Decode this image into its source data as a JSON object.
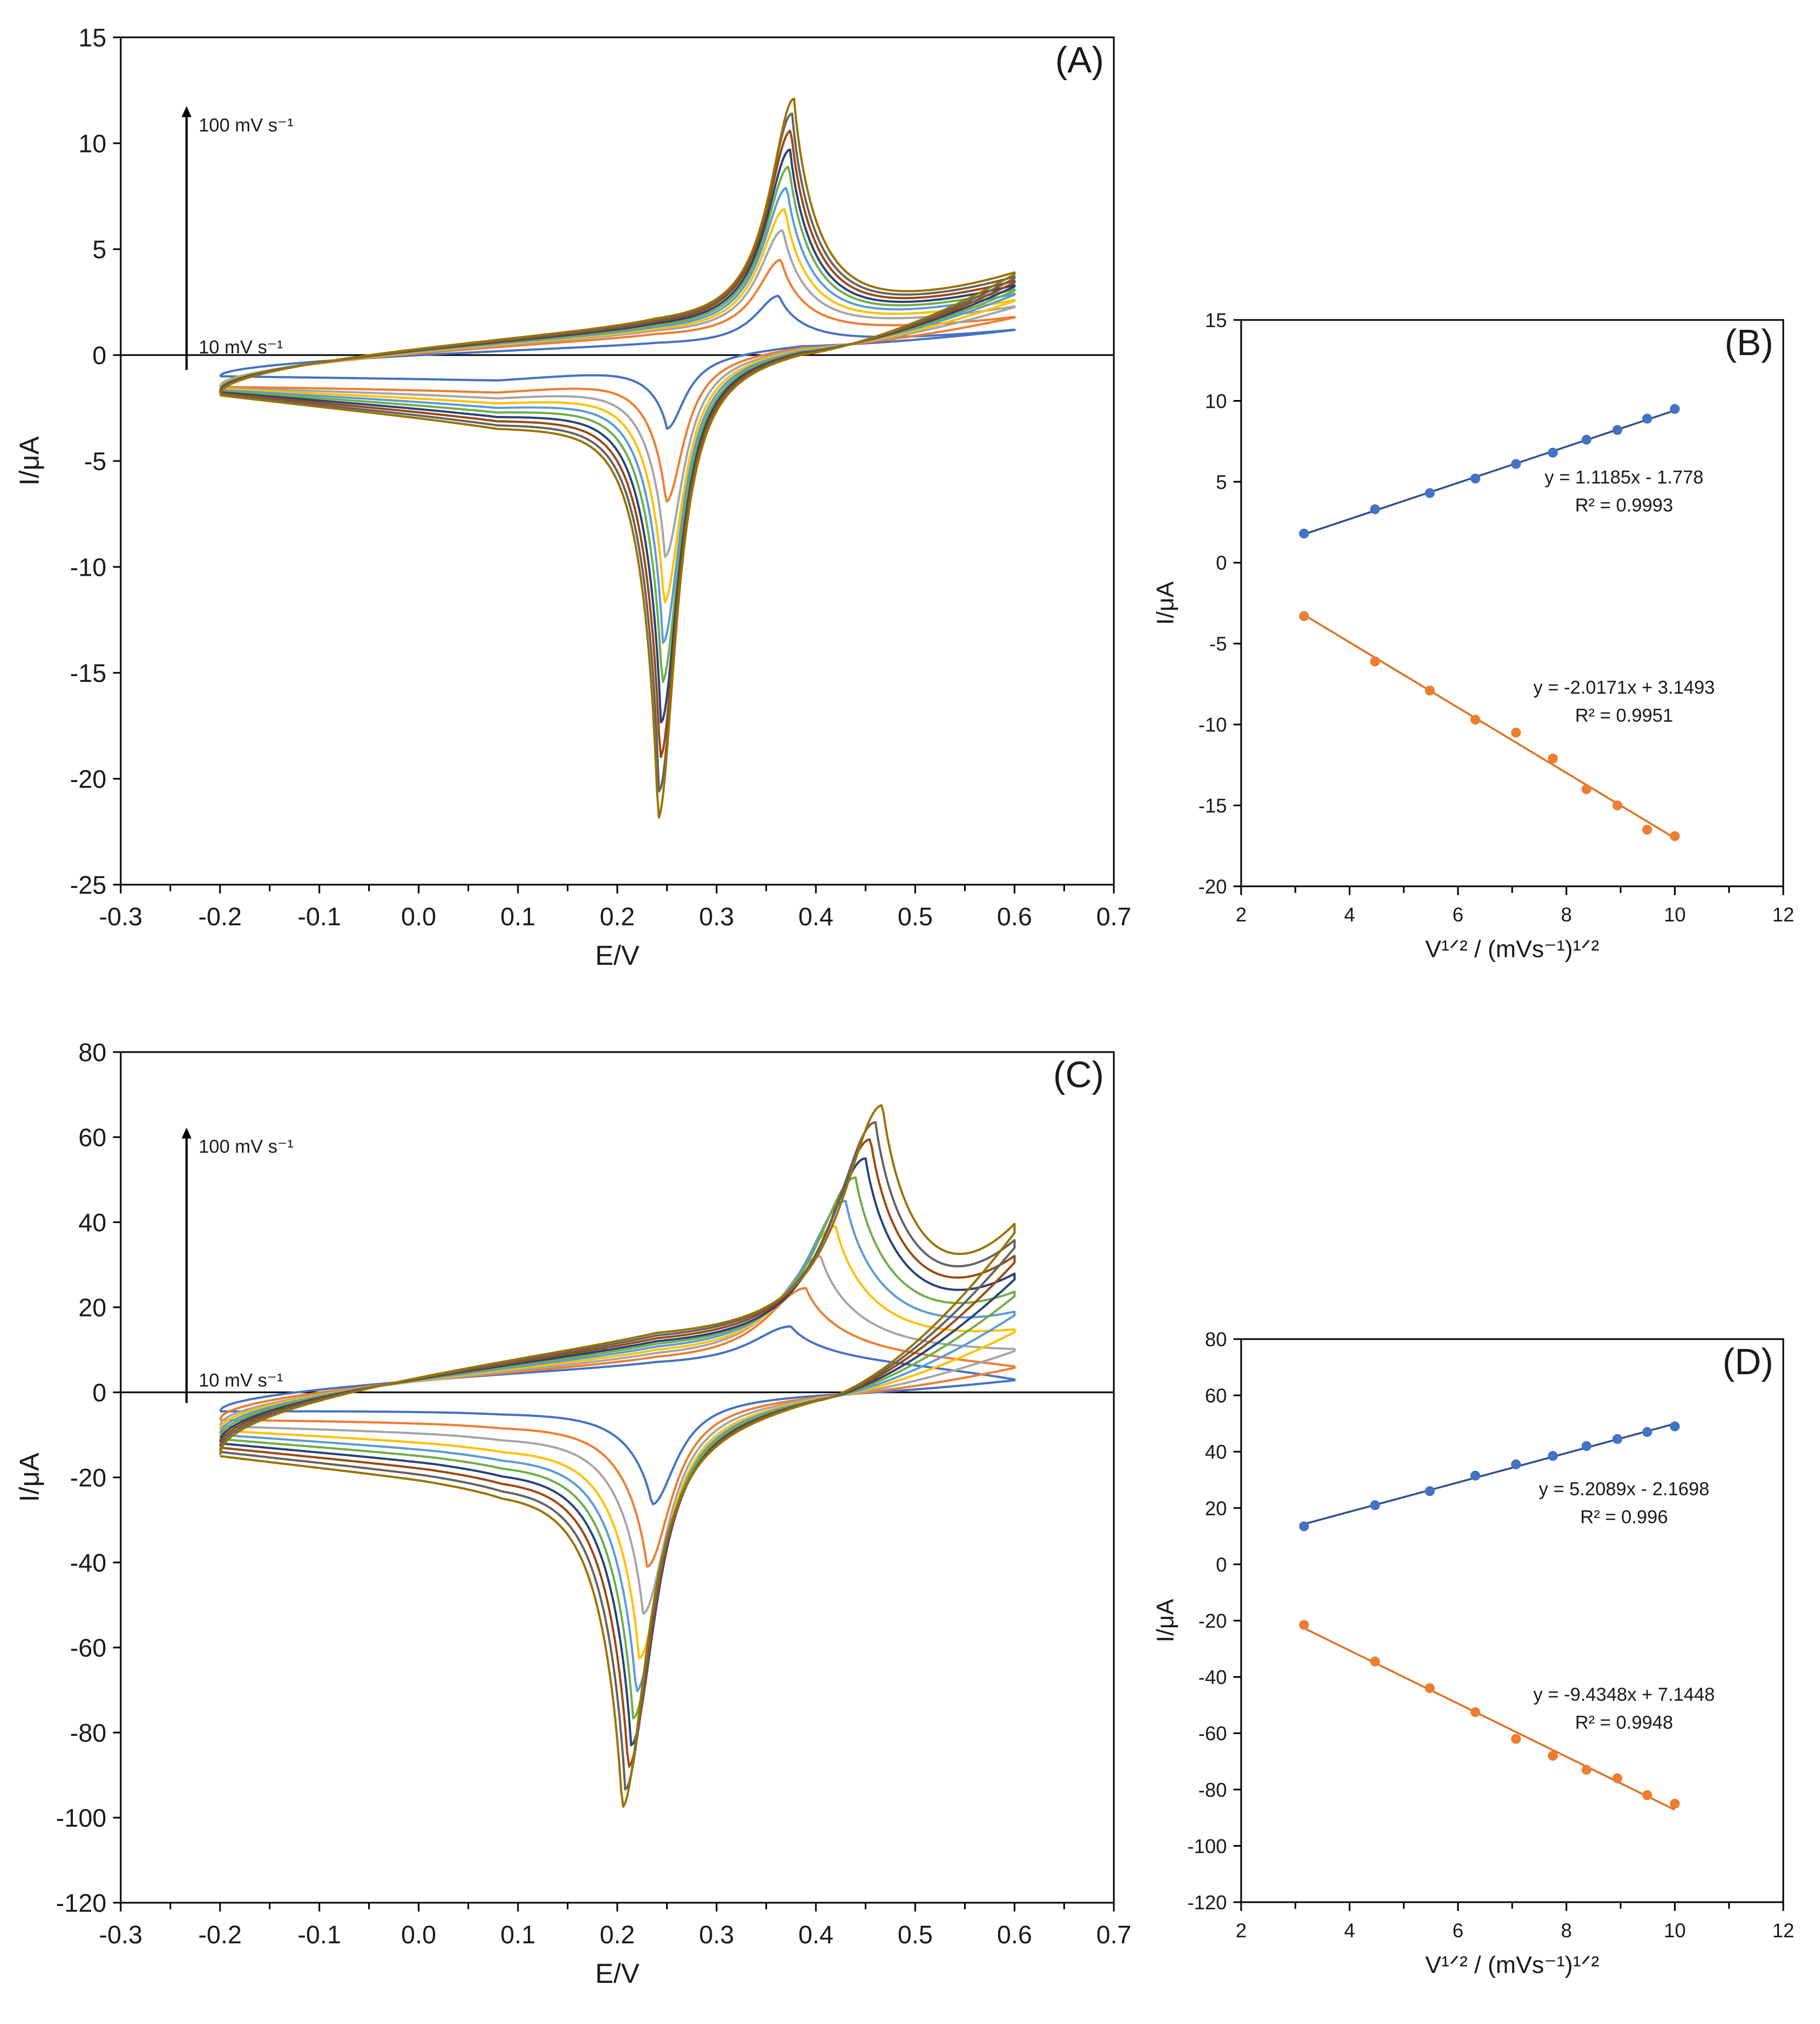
{
  "colors": {
    "series": [
      "#4472C4",
      "#ED7D31",
      "#A5A5A5",
      "#FFC000",
      "#5B9BD5",
      "#70AD47",
      "#264478",
      "#9E480E",
      "#636363",
      "#997300"
    ],
    "fit_ox": "#2F4F8F",
    "fit_red": "#E07020"
  },
  "chart_data": [
    {
      "id": "A",
      "type": "line",
      "panel_label": "(A)",
      "xlabel": "E/V",
      "ylabel": "I/μA",
      "xlim": [
        -0.3,
        0.7
      ],
      "ylim": [
        -25,
        15
      ],
      "xticks": [
        -0.3,
        -0.2,
        -0.1,
        0.0,
        0.1,
        0.2,
        0.3,
        0.4,
        0.5,
        0.6,
        0.7
      ],
      "yticks": [
        -25,
        -20,
        -15,
        -10,
        -5,
        0,
        5,
        10,
        15
      ],
      "x_tick_labels": [
        "-0.3",
        "-0.2",
        "-0.1",
        "0.0",
        "0.1",
        "0.2",
        "0.3",
        "0.4",
        "0.5",
        "0.6",
        "0.7"
      ],
      "y_tick_labels": [
        "-25",
        "-20",
        "-15",
        "-10",
        "-5",
        "0",
        "5",
        "10",
        "15"
      ],
      "annotation_top": "100 mV s⁻¹",
      "annotation_bottom": "10 mV s⁻¹",
      "arrow_range": [
        -0.7,
        11.7
      ],
      "scan_rates_mV_s": [
        10,
        20,
        30,
        40,
        50,
        60,
        70,
        80,
        90,
        100
      ],
      "cv": {
        "E_start": -0.2,
        "E_end": 0.6,
        "Epa": [
          0.363,
          0.365,
          0.367,
          0.369,
          0.371,
          0.373,
          0.374,
          0.375,
          0.376,
          0.378
        ],
        "Epc": [
          0.25,
          0.249,
          0.248,
          0.247,
          0.246,
          0.245,
          0.244,
          0.243,
          0.242,
          0.241
        ],
        "Ipa": [
          2.8,
          4.5,
          5.9,
          6.9,
          7.9,
          8.9,
          9.7,
          10.6,
          11.4,
          12.1
        ],
        "Ipc": [
          -4.1,
          -7.6,
          -10.2,
          -12.4,
          -14.3,
          -16.2,
          -18.1,
          -19.8,
          -21.4,
          -22.7
        ],
        "ox_start": [
          -1.0,
          -1.5,
          -1.55,
          -1.6,
          -1.65,
          -1.7,
          -1.75,
          -1.8,
          -1.85,
          -1.9
        ],
        "ox_mid": [
          0.45,
          0.8,
          0.9,
          0.95,
          1.0,
          1.05,
          1.1,
          1.15,
          1.2,
          1.25
        ],
        "ox_end": [
          1.2,
          1.8,
          2.3,
          2.6,
          2.9,
          3.1,
          3.3,
          3.5,
          3.7,
          3.9
        ],
        "red_mid": [
          -0.9,
          -1.15,
          -1.2,
          -1.25,
          -1.3,
          -1.35,
          -1.4,
          -1.45,
          -1.5,
          -1.55
        ],
        "red_base_at_peak": [
          -0.7,
          -0.8,
          -0.85,
          -0.9,
          -0.95,
          -1.0,
          -1.05,
          -1.1,
          -1.15,
          -1.2
        ],
        "peak_width_ox": 0.03,
        "peak_width_red": 0.022,
        "decay_ox": 0.06,
        "decay_red": 0.05,
        "crossing_E": 0.39,
        "crossing_I": 0.5
      }
    },
    {
      "id": "B",
      "type": "scatter",
      "panel_label": "(B)",
      "xlabel": "V¹ᐟ² / (mVs⁻¹)¹ᐟ²",
      "ylabel": "I/μA",
      "xlim": [
        2,
        12
      ],
      "ylim": [
        -20,
        15
      ],
      "xticks": [
        2,
        4,
        6,
        8,
        10,
        12
      ],
      "yticks": [
        -20,
        -15,
        -10,
        -5,
        0,
        5,
        10,
        15
      ],
      "x_tick_labels": [
        "2",
        "4",
        "6",
        "8",
        "10",
        "12"
      ],
      "y_tick_labels": [
        "-20",
        "-15",
        "-10",
        "-5",
        "0",
        "5",
        "10",
        "15"
      ],
      "x": [
        3.16,
        4.47,
        5.48,
        6.32,
        7.07,
        7.75,
        8.37,
        8.94,
        9.49,
        10.0
      ],
      "series": [
        {
          "name": "anodic",
          "values": [
            1.8,
            3.3,
            4.3,
            5.2,
            6.1,
            6.8,
            7.6,
            8.2,
            8.9,
            9.5
          ],
          "slope": 1.1185,
          "intercept": -1.778,
          "equation": "y = 1.1185x - 1.778",
          "r2": "R² = 0.9993",
          "label_at": [
            7.9,
            4.9
          ]
        },
        {
          "name": "cathodic",
          "values": [
            -3.3,
            -6.1,
            -7.9,
            -9.7,
            -10.5,
            -12.1,
            -14.0,
            -15.0,
            -16.5,
            -16.9
          ],
          "slope": -2.0171,
          "intercept": 3.1493,
          "equation": "y = -2.0171x + 3.1493",
          "r2": "R² = 0.9951",
          "label_at": [
            7.9,
            -8.1
          ]
        }
      ]
    },
    {
      "id": "C",
      "type": "line",
      "panel_label": "(C)",
      "xlabel": "E/V",
      "ylabel": "I/μA",
      "xlim": [
        -0.3,
        0.7
      ],
      "ylim": [
        -120,
        80
      ],
      "xticks": [
        -0.3,
        -0.2,
        -0.1,
        0.0,
        0.1,
        0.2,
        0.3,
        0.4,
        0.5,
        0.6,
        0.7
      ],
      "yticks": [
        -120,
        -100,
        -80,
        -60,
        -40,
        -20,
        0,
        20,
        40,
        60,
        80
      ],
      "x_tick_labels": [
        "-0.3",
        "-0.2",
        "-0.1",
        "0.0",
        "0.1",
        "0.2",
        "0.3",
        "0.4",
        "0.5",
        "0.6",
        "0.7"
      ],
      "y_tick_labels": [
        "-120",
        "-100",
        "-80",
        "-60",
        "-40",
        "-20",
        "0",
        "20",
        "40",
        "60",
        "80"
      ],
      "annotation_top": "100 mV s⁻¹",
      "annotation_bottom": "10 mV s⁻¹",
      "arrow_range": [
        -2.5,
        62
      ],
      "scan_rates_mV_s": [
        10,
        20,
        30,
        40,
        50,
        60,
        70,
        80,
        90,
        100
      ],
      "cv": {
        "E_start": -0.2,
        "E_end": 0.6,
        "Epa": [
          0.375,
          0.39,
          0.405,
          0.42,
          0.43,
          0.44,
          0.45,
          0.455,
          0.46,
          0.467
        ],
        "Epc": [
          0.235,
          0.23,
          0.226,
          0.222,
          0.219,
          0.216,
          0.214,
          0.211,
          0.208,
          0.205
        ],
        "Ipa": [
          15.5,
          24.5,
          32.0,
          39.0,
          45.0,
          50.5,
          55.0,
          59.5,
          63.5,
          67.5
        ],
        "Ipc": [
          -28,
          -44,
          -56,
          -67.5,
          -76,
          -83,
          -90,
          -95.5,
          -101,
          -105.5
        ],
        "ox_start": [
          -4.5,
          -6.5,
          -8.0,
          -9.0,
          -10.0,
          -11.0,
          -12.0,
          -13.0,
          -14.0,
          -15.0
        ],
        "ox_mid": [
          6.0,
          6.6,
          7.2,
          7.8,
          8.4,
          9.0,
          9.6,
          10.2,
          10.8,
          11.4
        ],
        "ox_end": [
          3.0,
          6.0,
          10.0,
          14.5,
          18.5,
          23.0,
          27.0,
          31.0,
          34.5,
          38.0
        ],
        "red_mid": [
          -2.0,
          -3.5,
          -5.0,
          -6.5,
          -7.5,
          -8.5,
          -9.5,
          -10.5,
          -11.5,
          -12.5
        ],
        "red_base_at_peak": [
          -3.0,
          -5.5,
          -7.5,
          -9.5,
          -11.0,
          -12.5,
          -14.0,
          -15.0,
          -16.0,
          -17.0
        ],
        "peak_width_ox": 0.05,
        "peak_width_red": 0.03,
        "decay_ox": 0.09,
        "decay_red": 0.075,
        "crossing_E": 0.4,
        "crossing_I": 0
      }
    },
    {
      "id": "D",
      "type": "scatter",
      "panel_label": "(D)",
      "xlabel": "V¹ᐟ² / (mVs⁻¹)¹ᐟ²",
      "ylabel": "I/μA",
      "xlim": [
        2,
        12
      ],
      "ylim": [
        -120,
        80
      ],
      "xticks": [
        2,
        4,
        6,
        8,
        10,
        12
      ],
      "yticks": [
        -120,
        -100,
        -80,
        -60,
        -40,
        -20,
        0,
        20,
        40,
        60,
        80
      ],
      "x_tick_labels": [
        "2",
        "4",
        "6",
        "8",
        "10",
        "12"
      ],
      "y_tick_labels": [
        "-120",
        "-100",
        "-80",
        "-60",
        "-40",
        "-20",
        "0",
        "20",
        "40",
        "60",
        "80"
      ],
      "x": [
        3.16,
        4.47,
        5.48,
        6.32,
        7.07,
        7.75,
        8.37,
        8.94,
        9.49,
        10.0
      ],
      "series": [
        {
          "name": "anodic",
          "values": [
            13.5,
            21.0,
            26.0,
            31.5,
            35.5,
            38.5,
            42.0,
            44.5,
            47.0,
            49.0
          ],
          "slope": 5.2089,
          "intercept": -2.1698,
          "equation": "y = 5.2089x - 2.1698",
          "r2": "R² = 0.996",
          "label_at": [
            7.9,
            24.5
          ]
        },
        {
          "name": "cathodic",
          "values": [
            -21.5,
            -34.5,
            -44.0,
            -52.5,
            -62.0,
            -68.0,
            -73.0,
            -76.0,
            -82.0,
            -85.0
          ],
          "slope": -9.4348,
          "intercept": 7.1448,
          "equation": "y = -9.4348x + 7.1448",
          "r2": "R² = 0.9948",
          "label_at": [
            7.9,
            -48.5
          ]
        }
      ]
    }
  ]
}
